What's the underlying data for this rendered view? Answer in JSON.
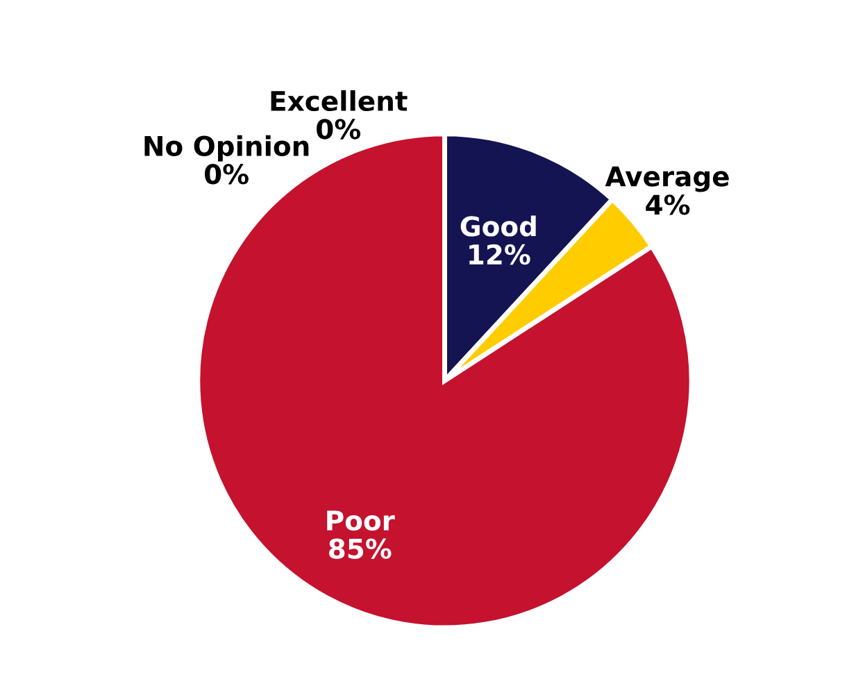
{
  "chart_data": {
    "type": "pie",
    "categories": [
      "Excellent",
      "Good",
      "Average",
      "Poor",
      "No Opinion"
    ],
    "values": [
      0,
      12,
      4,
      85,
      0
    ],
    "colors": [
      "#7f7f7f",
      "#141452",
      "#ffcc00",
      "#c4122f",
      "#a6a6a6"
    ],
    "value_labels": [
      "0%",
      "12%",
      "4%",
      "85%",
      "0%"
    ],
    "legend": false
  }
}
